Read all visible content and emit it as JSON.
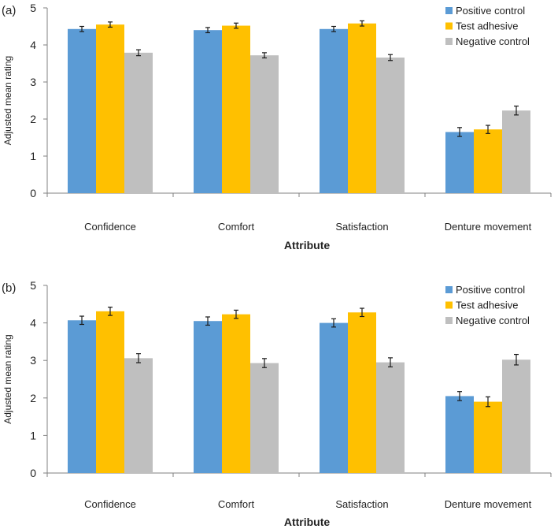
{
  "chart_data": [
    {
      "type": "bar",
      "panel_label": "(a)",
      "title": "",
      "xlabel": "Attribute",
      "ylabel": "Adjusted mean rating",
      "ylim": [
        0,
        5
      ],
      "yticks": [
        "0",
        "1",
        "2",
        "3",
        "4",
        "5"
      ],
      "grid": false,
      "legend_position": "top-right",
      "categories": [
        "Confidence",
        "Comfort",
        "Satisfaction",
        "Denture movement"
      ],
      "series": [
        {
          "name": "Positive control",
          "color": "#5B9BD5",
          "values": [
            4.43,
            4.4,
            4.43,
            1.65
          ],
          "errors": [
            0.07,
            0.07,
            0.07,
            0.12
          ]
        },
        {
          "name": "Test adhesive",
          "color": "#FFC000",
          "values": [
            4.55,
            4.52,
            4.58,
            1.72
          ],
          "errors": [
            0.07,
            0.07,
            0.07,
            0.11
          ]
        },
        {
          "name": "Negative control",
          "color": "#BFBFBF",
          "values": [
            3.79,
            3.72,
            3.66,
            2.23
          ],
          "errors": [
            0.08,
            0.07,
            0.08,
            0.12
          ]
        }
      ]
    },
    {
      "type": "bar",
      "panel_label": "(b)",
      "title": "",
      "xlabel": "Attribute",
      "ylabel": "Adjusted mean rating",
      "ylim": [
        0,
        5
      ],
      "yticks": [
        "0",
        "1",
        "2",
        "3",
        "4",
        "5"
      ],
      "grid": false,
      "legend_position": "top-right",
      "categories": [
        "Confidence",
        "Comfort",
        "Satisfaction",
        "Denture movement"
      ],
      "series": [
        {
          "name": "Positive control",
          "color": "#5B9BD5",
          "values": [
            4.07,
            4.05,
            4.0,
            2.05
          ],
          "errors": [
            0.11,
            0.11,
            0.11,
            0.12
          ]
        },
        {
          "name": "Test adhesive",
          "color": "#FFC000",
          "values": [
            4.31,
            4.23,
            4.28,
            1.9
          ],
          "errors": [
            0.11,
            0.11,
            0.11,
            0.13
          ]
        },
        {
          "name": "Negative control",
          "color": "#BFBFBF",
          "values": [
            3.06,
            2.93,
            2.95,
            3.02
          ],
          "errors": [
            0.12,
            0.12,
            0.12,
            0.14
          ]
        }
      ]
    }
  ]
}
